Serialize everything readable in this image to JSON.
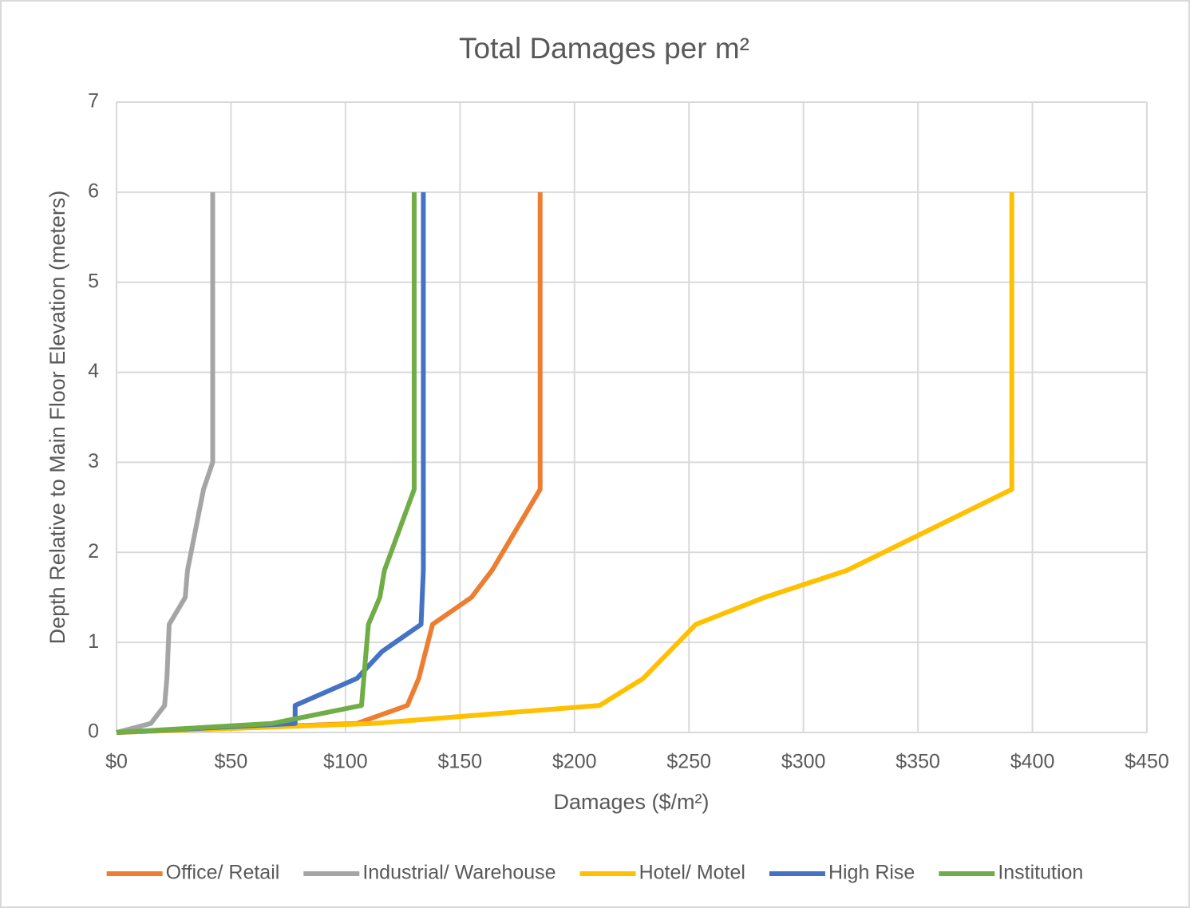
{
  "chart_data": {
    "type": "line",
    "title": "Total Damages per m²",
    "x_label": "Damages ($/m²)",
    "y_label": "Depth Relative to Main Floor Elevation (meters)",
    "xlim": [
      0,
      450
    ],
    "xticks": [
      {
        "value": 0,
        "label": "$0"
      },
      {
        "value": 50,
        "label": "$50"
      },
      {
        "value": 100,
        "label": "$100"
      },
      {
        "value": 150,
        "label": "$150"
      },
      {
        "value": 200,
        "label": "$200"
      },
      {
        "value": 250,
        "label": "$250"
      },
      {
        "value": 300,
        "label": "$300"
      },
      {
        "value": 350,
        "label": "$350"
      },
      {
        "value": 400,
        "label": "$400"
      },
      {
        "value": 450,
        "label": "$450"
      }
    ],
    "ylim": [
      0,
      7
    ],
    "yticks": [
      0,
      1,
      2,
      3,
      4,
      5,
      6,
      7
    ],
    "grid": true,
    "legend": "bottom",
    "series": [
      {
        "name": "Office/ Retail",
        "color": "#ed7d31",
        "x": [
          0,
          105,
          127,
          132,
          138,
          155,
          164,
          185,
          185
        ],
        "values": [
          0,
          0.1,
          0.3,
          0.6,
          1.2,
          1.5,
          1.8,
          2.7,
          6
        ]
      },
      {
        "name": "Industrial/ Warehouse",
        "color": "#a5a5a5",
        "x": [
          0,
          15,
          21,
          22,
          23,
          30,
          31,
          38,
          42,
          42
        ],
        "values": [
          0,
          0.1,
          0.3,
          0.6,
          1.2,
          1.5,
          1.8,
          2.7,
          3,
          6
        ]
      },
      {
        "name": "Hotel/ Motel",
        "color": "#ffc000",
        "x": [
          0,
          112,
          211,
          230,
          253,
          283,
          319,
          391,
          391
        ],
        "values": [
          0,
          0.1,
          0.3,
          0.6,
          1.2,
          1.5,
          1.8,
          2.7,
          6
        ]
      },
      {
        "name": "High Rise",
        "color": "#4472c4",
        "x": [
          0,
          78,
          78,
          105,
          116,
          133,
          134,
          134
        ],
        "values": [
          0,
          0.1,
          0.3,
          0.6,
          0.9,
          1.2,
          1.8,
          6
        ]
      },
      {
        "name": "Institution",
        "color": "#70ad47",
        "x": [
          0,
          68,
          107,
          110,
          115,
          117,
          130,
          130
        ],
        "values": [
          0,
          0.1,
          0.3,
          1.2,
          1.5,
          1.8,
          2.7,
          6
        ]
      }
    ]
  }
}
